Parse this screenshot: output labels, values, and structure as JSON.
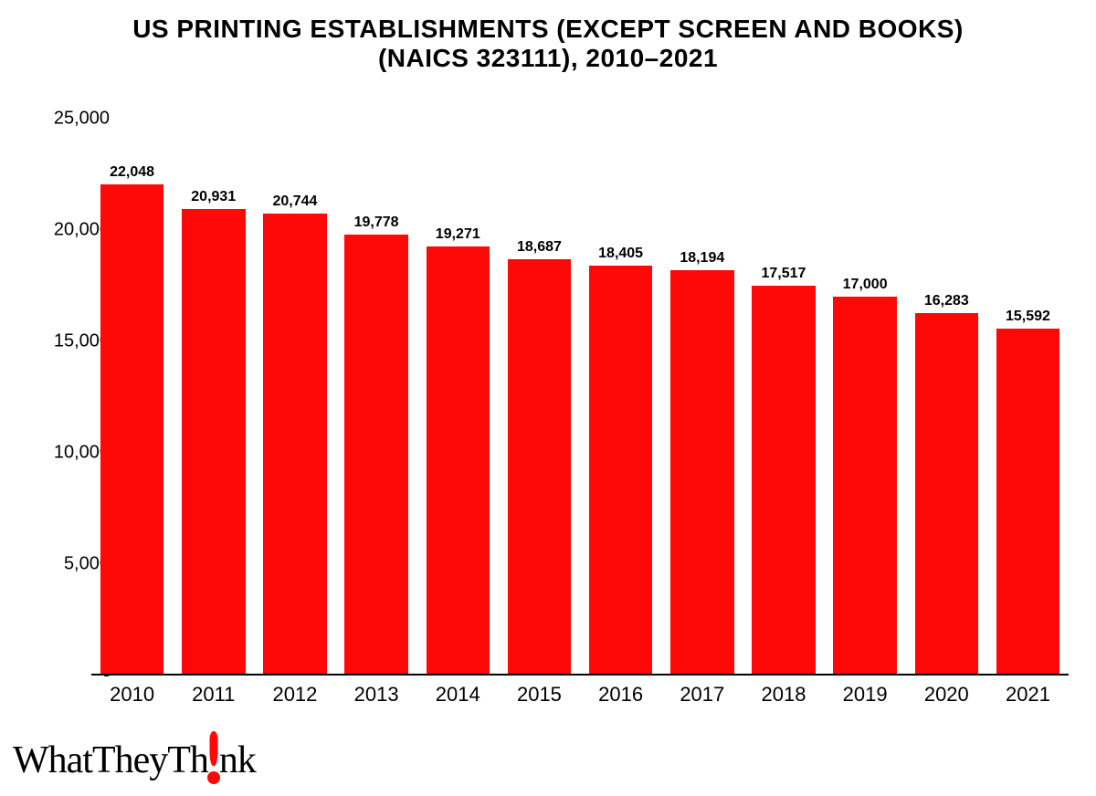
{
  "chart": {
    "type": "bar",
    "title_line1": "US PRINTING ESTABLISHMENTS (EXCEPT SCREEN AND BOOKS)",
    "title_line2": "(NAICS 323111), 2010–2021",
    "title_fontsize_pt": 28,
    "title_color": "#000000",
    "background_color": "#ffffff",
    "bar_color": "#fe0808",
    "bar_width_ratio": 0.78,
    "axis_line_color": "#000000",
    "data_label_fontsize_pt": 16,
    "data_label_fontweight": "700",
    "data_label_color": "#000000",
    "x_tick_fontsize_pt": 22,
    "x_tick_color": "#000000",
    "y_tick_fontsize_pt": 20,
    "y_tick_color": "#000000",
    "ylim": [
      0,
      25000
    ],
    "y_ticks": [
      {
        "value": 0,
        "label": "-"
      },
      {
        "value": 5000,
        "label": "5,000"
      },
      {
        "value": 10000,
        "label": "10,000"
      },
      {
        "value": 15000,
        "label": "15,000"
      },
      {
        "value": 20000,
        "label": "20,000"
      },
      {
        "value": 25000,
        "label": "25,000"
      }
    ],
    "categories": [
      "2010",
      "2011",
      "2012",
      "2013",
      "2014",
      "2015",
      "2016",
      "2017",
      "2018",
      "2019",
      "2020",
      "2021"
    ],
    "values": [
      22048,
      20931,
      20744,
      19778,
      19271,
      18687,
      18405,
      18194,
      17517,
      17000,
      16283,
      15592
    ],
    "value_labels": [
      "22,048",
      "20,931",
      "20,744",
      "19,778",
      "19,271",
      "18,687",
      "18,405",
      "18,194",
      "17,517",
      "17,000",
      "16,283",
      "15,592"
    ]
  },
  "logo": {
    "text_before": "WhatTheyTh",
    "text_after": "nk",
    "accent_color": "#fe0808",
    "text_color": "#000000",
    "fontsize_pt": 42
  }
}
